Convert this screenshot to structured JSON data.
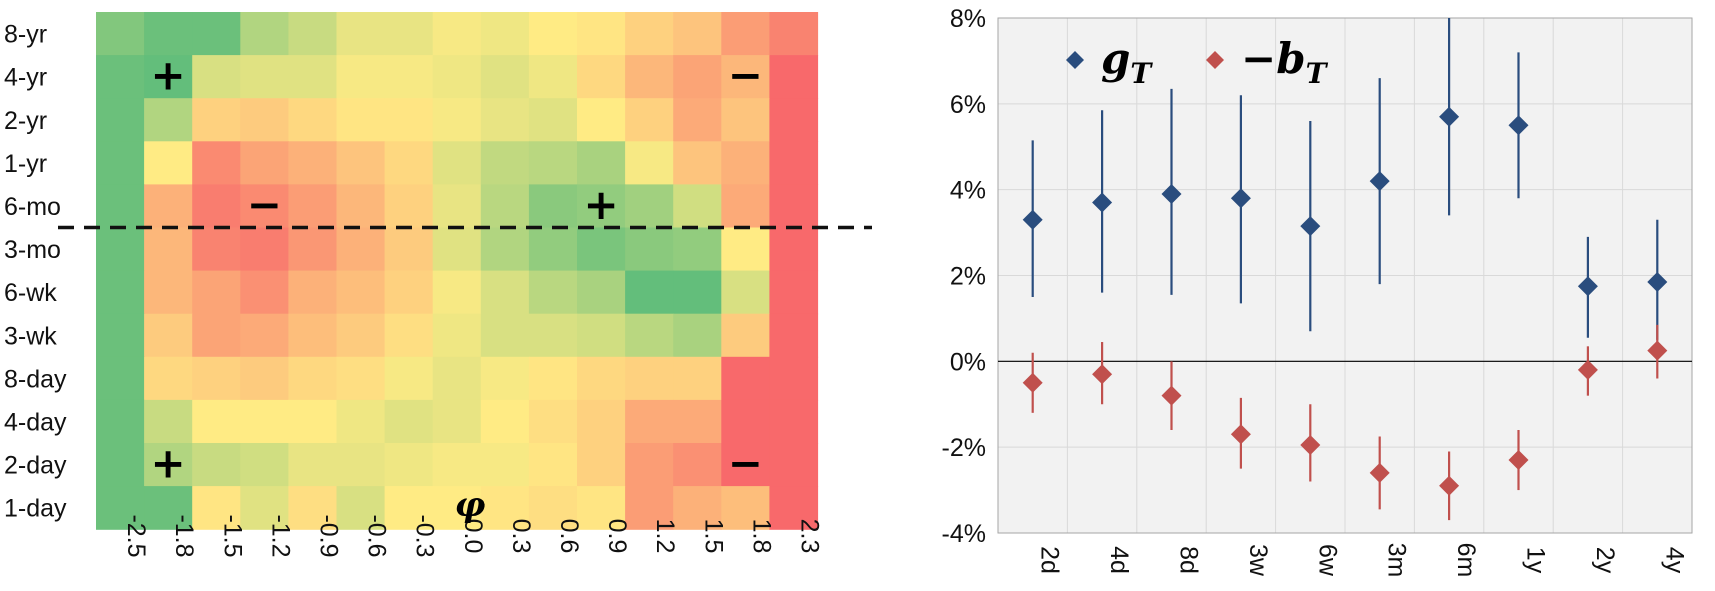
{
  "chart_data": [
    {
      "type": "heatmap",
      "rows": [
        "8-yr",
        "4-yr",
        "2-yr",
        "1-yr",
        "6-mo",
        "3-mo",
        "6-wk",
        "3-wk",
        "8-day",
        "4-day",
        "2-day",
        "1-day"
      ],
      "columns": [
        "-2.5",
        "-1.8",
        "-1.5",
        "-1.2",
        "-0.9",
        "-0.6",
        "-0.3",
        "0.0",
        "0.3",
        "0.6",
        "0.9",
        "1.2",
        "1.5",
        "1.8",
        "2.3"
      ],
      "xlabel": "φ",
      "colorscale": {
        "low": "#f8696b",
        "mid": "#ffeb84",
        "high": "#63be7b",
        "range": [
          -1,
          1
        ]
      },
      "values": [
        [
          0.8,
          0.95,
          0.95,
          0.5,
          0.35,
          0.15,
          0.15,
          0.05,
          0.1,
          0.0,
          -0.05,
          -0.2,
          -0.3,
          -0.6,
          -0.8
        ],
        [
          0.95,
          1.0,
          0.25,
          0.2,
          0.2,
          0.05,
          0.05,
          0.1,
          0.2,
          0.1,
          -0.15,
          -0.4,
          -0.55,
          -0.4,
          -1.0
        ],
        [
          0.95,
          0.5,
          -0.2,
          -0.25,
          -0.15,
          -0.05,
          -0.05,
          0.05,
          0.15,
          0.2,
          0.0,
          -0.2,
          -0.5,
          -0.3,
          -1.0
        ],
        [
          0.95,
          0.0,
          -0.75,
          -0.55,
          -0.45,
          -0.3,
          -0.15,
          0.2,
          0.4,
          0.45,
          0.55,
          0.05,
          -0.3,
          -0.45,
          -1.0
        ],
        [
          0.95,
          -0.45,
          -0.85,
          -0.75,
          -0.6,
          -0.4,
          -0.2,
          0.15,
          0.45,
          0.75,
          0.7,
          0.6,
          0.3,
          -0.5,
          -1.0
        ],
        [
          0.95,
          -0.4,
          -0.8,
          -0.85,
          -0.65,
          -0.45,
          -0.25,
          0.2,
          0.5,
          0.7,
          0.85,
          0.75,
          0.7,
          0.0,
          -1.0
        ],
        [
          0.95,
          -0.4,
          -0.55,
          -0.7,
          -0.45,
          -0.35,
          -0.2,
          0.05,
          0.25,
          0.45,
          0.55,
          1.0,
          1.0,
          0.25,
          -1.0
        ],
        [
          0.95,
          -0.25,
          -0.55,
          -0.5,
          -0.35,
          -0.25,
          -0.1,
          0.1,
          0.25,
          0.25,
          0.3,
          0.45,
          0.55,
          -0.25,
          -1.0
        ],
        [
          0.95,
          -0.15,
          -0.2,
          -0.25,
          -0.15,
          -0.1,
          0.05,
          0.15,
          0.05,
          -0.05,
          -0.15,
          -0.2,
          -0.2,
          -1.0,
          -1.0
        ],
        [
          0.95,
          0.35,
          0.0,
          0.0,
          0.0,
          0.1,
          0.2,
          0.15,
          0.0,
          -0.1,
          -0.2,
          -0.5,
          -0.5,
          -1.0,
          -1.0
        ],
        [
          0.95,
          0.5,
          0.35,
          0.3,
          0.15,
          0.15,
          0.1,
          0.05,
          0.05,
          -0.05,
          -0.2,
          -0.6,
          -0.7,
          -1.0,
          -1.0
        ],
        [
          0.95,
          0.95,
          -0.05,
          0.2,
          -0.1,
          0.25,
          0.0,
          0.0,
          -0.05,
          -0.1,
          -0.05,
          -0.6,
          -0.45,
          -0.35,
          -1.0
        ]
      ],
      "annotations": [
        {
          "text": "+",
          "row": "4-yr",
          "column": "-1.8"
        },
        {
          "text": "−",
          "row": "4-yr",
          "column": "1.8"
        },
        {
          "text": "−",
          "row": "6-mo",
          "column": "-1.2"
        },
        {
          "text": "+",
          "row": "6-mo",
          "column": "0.9"
        },
        {
          "text": "+",
          "row": "2-day",
          "column": "-1.8"
        },
        {
          "text": "−",
          "row": "2-day",
          "column": "1.8"
        }
      ],
      "divider": "dashed horizontal line between 6-mo and 3-mo"
    },
    {
      "type": "scatter",
      "title": "",
      "xlabel": "",
      "ylabel": "",
      "categories": [
        "2d",
        "4d",
        "8d",
        "3w",
        "6w",
        "3m",
        "6m",
        "1y",
        "2y",
        "4y"
      ],
      "ylim": [
        -4,
        8
      ],
      "yticks": [
        "8%",
        "6%",
        "4%",
        "2%",
        "0%",
        "-2%",
        "-4%"
      ],
      "ytick_values": [
        8,
        6,
        4,
        2,
        0,
        -2,
        -4
      ],
      "grid": true,
      "legend_position": "top-left",
      "series": [
        {
          "name": "gT",
          "legend_main": "g",
          "legend_sub": "T",
          "color": "#2a4d7e",
          "values": [
            3.3,
            3.7,
            3.9,
            3.8,
            3.15,
            4.2,
            5.7,
            5.5,
            1.75,
            1.85
          ],
          "err_low": [
            1.5,
            1.6,
            1.55,
            1.35,
            0.7,
            1.8,
            3.4,
            3.8,
            0.55,
            0.5
          ],
          "err_high": [
            5.15,
            5.85,
            6.35,
            6.2,
            5.6,
            6.6,
            8.0,
            7.2,
            2.9,
            3.3
          ]
        },
        {
          "name": "−bT",
          "legend_main": "−b",
          "legend_sub": "T",
          "color": "#c0504d",
          "values": [
            -0.5,
            -0.3,
            -0.8,
            -1.7,
            -1.95,
            -2.6,
            -2.9,
            -2.3,
            -0.2,
            0.25
          ],
          "err_low": [
            -1.2,
            -1.0,
            -1.6,
            -2.5,
            -2.8,
            -3.45,
            -3.7,
            -3.0,
            -0.8,
            -0.4
          ],
          "err_high": [
            0.2,
            0.45,
            0.0,
            -0.85,
            -1.0,
            -1.75,
            -2.1,
            -1.6,
            0.35,
            0.85
          ]
        }
      ]
    }
  ]
}
